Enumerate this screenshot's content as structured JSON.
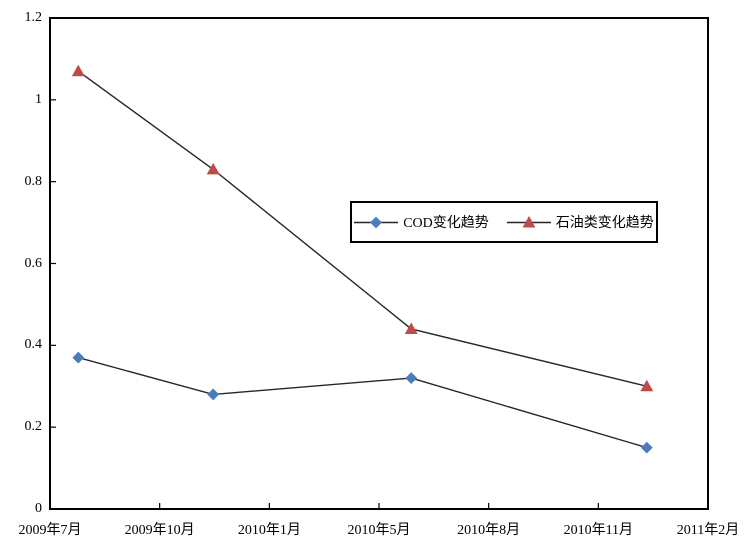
{
  "chart_data": {
    "type": "line",
    "title": "",
    "background_color": "#ffffff",
    "axis_color": "#000000",
    "series_line_color": "#262626",
    "grid": false,
    "x_axis": {
      "tick_labels": [
        "2009年7月",
        "2009年10月",
        "2010年1月",
        "2010年5月",
        "2010年8月",
        "2010年11月",
        "2011年2月"
      ]
    },
    "y_axis": {
      "min": 0,
      "max": 1.2,
      "step": 0.2,
      "tick_labels": [
        "0",
        "0.2",
        "0.4",
        "0.6",
        "0.8",
        "1",
        "1.2"
      ]
    },
    "series": [
      {
        "name": "COD变化趋势",
        "marker": "diamond",
        "marker_color": "#4a7ebb",
        "points": [
          {
            "x_frac": 0.043,
            "y": 0.37
          },
          {
            "x_frac": 0.248,
            "y": 0.28
          },
          {
            "x_frac": 0.549,
            "y": 0.32
          },
          {
            "x_frac": 0.907,
            "y": 0.15
          }
        ]
      },
      {
        "name": "石油类变化趋势",
        "marker": "triangle",
        "marker_color": "#be4b48",
        "points": [
          {
            "x_frac": 0.043,
            "y": 1.07
          },
          {
            "x_frac": 0.248,
            "y": 0.83
          },
          {
            "x_frac": 0.549,
            "y": 0.44
          },
          {
            "x_frac": 0.907,
            "y": 0.3
          }
        ]
      }
    ],
    "legend": {
      "position": "upper-middle-center",
      "border": true
    }
  }
}
